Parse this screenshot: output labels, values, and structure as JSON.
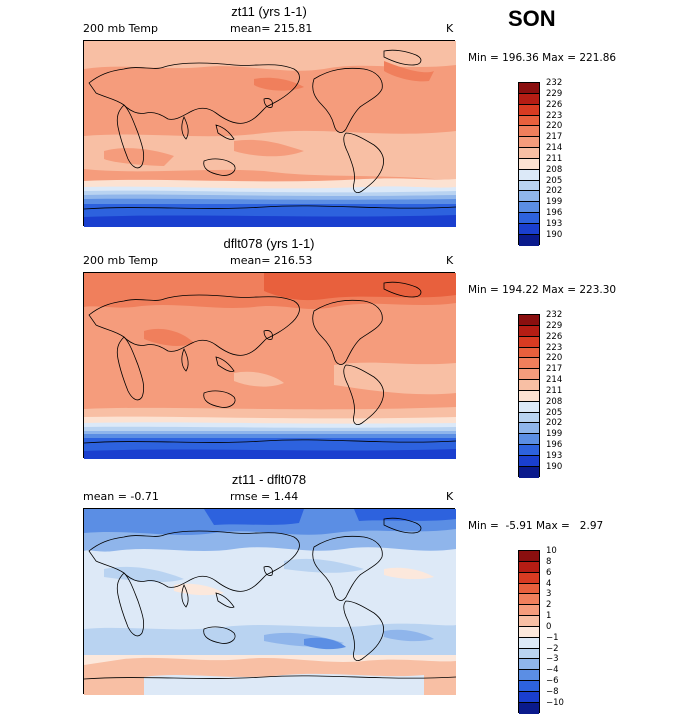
{
  "season": "SON",
  "panels": [
    {
      "title": "zt11 (yrs 1-1)",
      "left_label": "200 mb Temp",
      "mid_label": "mean= 215.81",
      "unit": "K",
      "minmax": "Min = 196.36 Max = 221.86",
      "levels": [
        "232",
        "229",
        "226",
        "223",
        "220",
        "217",
        "214",
        "211",
        "208",
        "205",
        "202",
        "199",
        "196",
        "193",
        "190"
      ]
    },
    {
      "title": "dflt078 (yrs 1-1)",
      "left_label": "200 mb Temp",
      "mid_label": "mean= 216.53",
      "unit": "K",
      "minmax": "Min = 194.22 Max = 223.30",
      "levels": [
        "232",
        "229",
        "226",
        "223",
        "220",
        "217",
        "214",
        "211",
        "208",
        "205",
        "202",
        "199",
        "196",
        "193",
        "190"
      ]
    },
    {
      "title": "zt11 - dflt078",
      "left_label": "mean =  -0.71",
      "mid_label": "rmse =   1.44",
      "unit": "K",
      "minmax": "Min =  -5.91 Max =   2.97",
      "levels": [
        "10",
        "8",
        "6",
        "4",
        "3",
        "2",
        "1",
        "0",
        "−1",
        "−2",
        "−3",
        "−4",
        "−6",
        "−8",
        "−10"
      ]
    }
  ],
  "colors": {
    "abs_scale": [
      "#8a0f0f",
      "#b51d14",
      "#d83b22",
      "#e8603d",
      "#f07f5c",
      "#f59c7c",
      "#f8bfa4",
      "#fce2d2",
      "#dce9f8",
      "#b9d3f1",
      "#8fb5eb",
      "#5b8ee4",
      "#2d62de",
      "#1a3fcf",
      "#0a1a8c"
    ],
    "diff_scale": [
      "#8a0f0f",
      "#b51d14",
      "#d83b22",
      "#e8603d",
      "#f07f5c",
      "#f59c7c",
      "#f8bfa4",
      "#fce8dc",
      "#dde9f7",
      "#b9d3f1",
      "#8fb5eb",
      "#5b8ee4",
      "#2d62de",
      "#1a3fcf",
      "#0a1a8c"
    ]
  }
}
